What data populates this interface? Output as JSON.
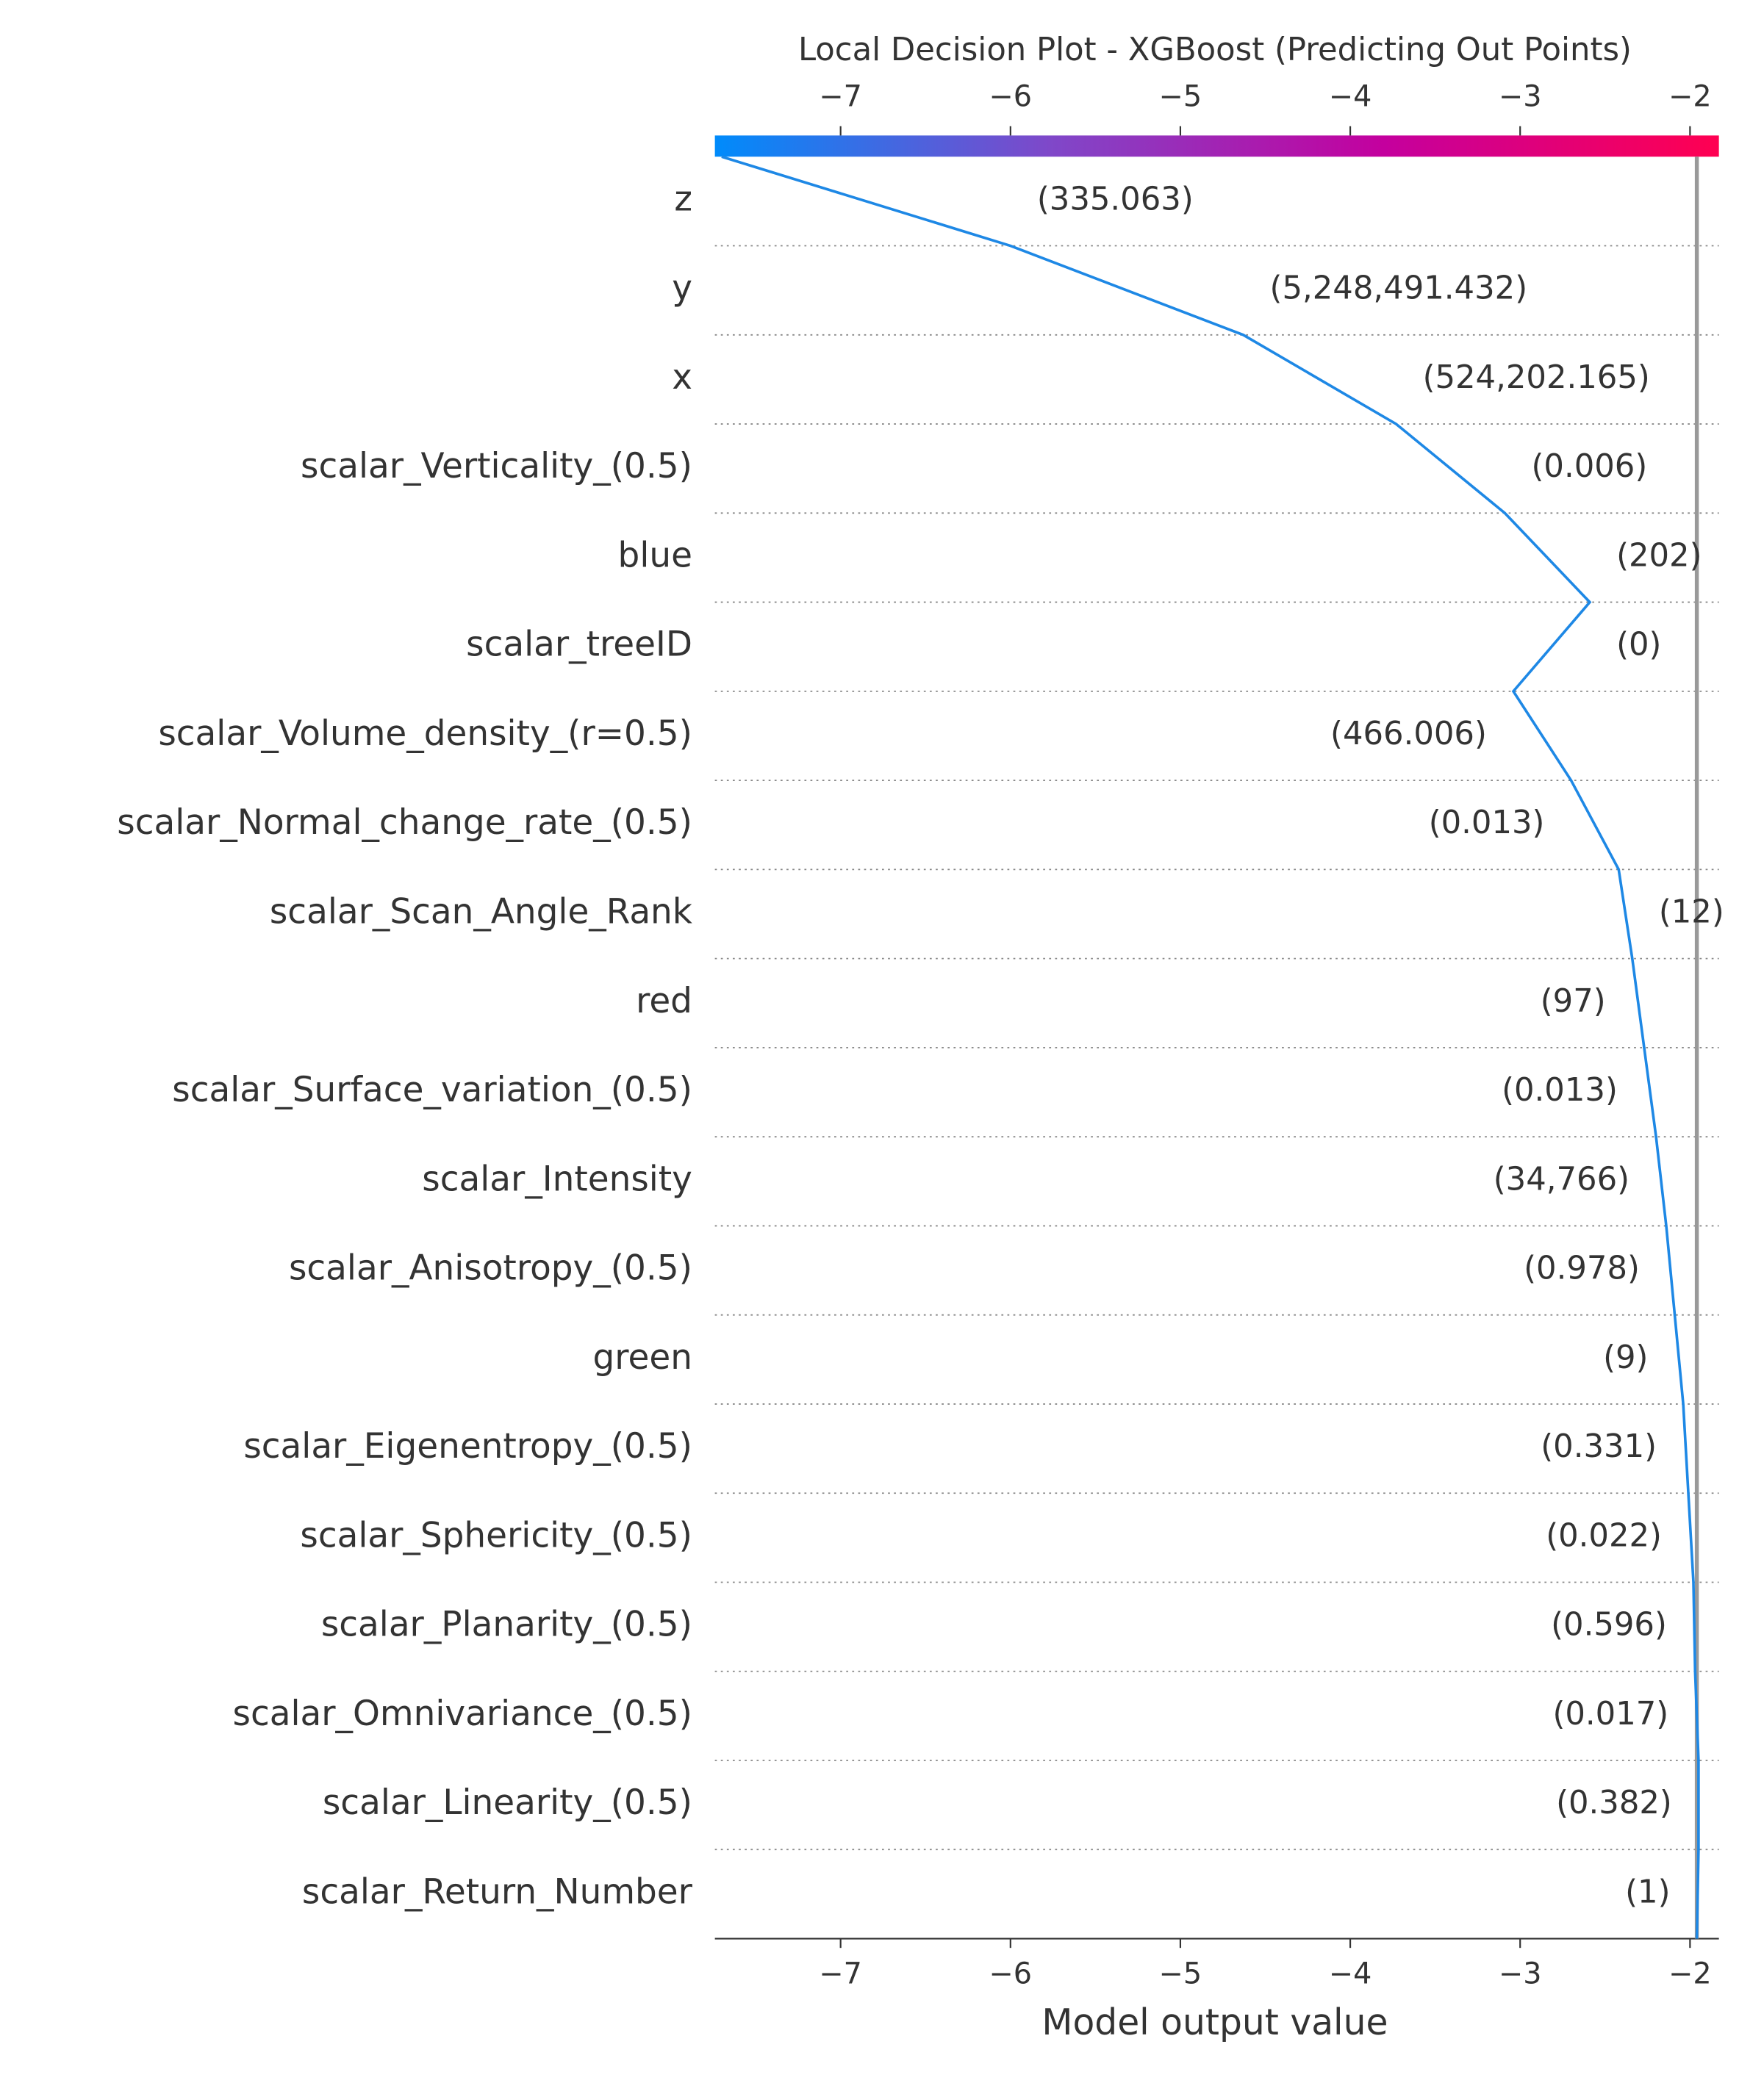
{
  "chart_data": {
    "type": "decision",
    "title": "Local Decision Plot - XGBoost (Predicting Out Points)",
    "x_label": "Model output value",
    "features": [
      "z",
      "y",
      "x",
      "scalar_Verticality_(0.5)",
      "blue",
      "scalar_treeID",
      "scalar_Volume_density_(r=0.5)",
      "scalar_Normal_change_rate_(0.5)",
      "scalar_Scan_Angle_Rank",
      "red",
      "scalar_Surface_variation_(0.5)",
      "scalar_Intensity",
      "scalar_Anisotropy_(0.5)",
      "green",
      "scalar_Eigenentropy_(0.5)",
      "scalar_Sphericity_(0.5)",
      "scalar_Planarity_(0.5)",
      "scalar_Omnivariance_(0.5)",
      "scalar_Linearity_(0.5)",
      "scalar_Return_Number"
    ],
    "feature_values": [
      "(335.063)",
      "(5,248,491.432)",
      "(524,202.165)",
      "(0.006)",
      "(202)",
      "(0)",
      "(466.006)",
      "(0.013)",
      "(12)",
      "(97)",
      "(0.013)",
      "(34,766)",
      "(0.978)",
      "(9)",
      "(0.331)",
      "(0.022)",
      "(0.596)",
      "(0.017)",
      "(0.382)",
      "(1)"
    ],
    "values": [
      -7.7,
      -6.0,
      -4.63,
      -3.73,
      -3.09,
      -2.59,
      -3.04,
      -2.7,
      -2.42,
      -2.34,
      -2.27,
      -2.2,
      -2.14,
      -2.09,
      -2.04,
      -2.01,
      -1.98,
      -1.97,
      -1.95,
      -1.95,
      -1.96
    ],
    "base_value": -1.96,
    "color": "#1e88e5",
    "colormap": [
      "#008bfb",
      "#7f48c9",
      "#c4009e",
      "#ff0051"
    ],
    "xlim": [
      -7.74,
      -1.83
    ],
    "xticks": [
      {
        "value": -7,
        "label": "−7"
      },
      {
        "value": -6,
        "label": "−6"
      },
      {
        "value": -5,
        "label": "−5"
      },
      {
        "value": -4,
        "label": "−4"
      },
      {
        "value": -3,
        "label": "−3"
      },
      {
        "value": -2,
        "label": "−2"
      }
    ],
    "grid": true
  }
}
